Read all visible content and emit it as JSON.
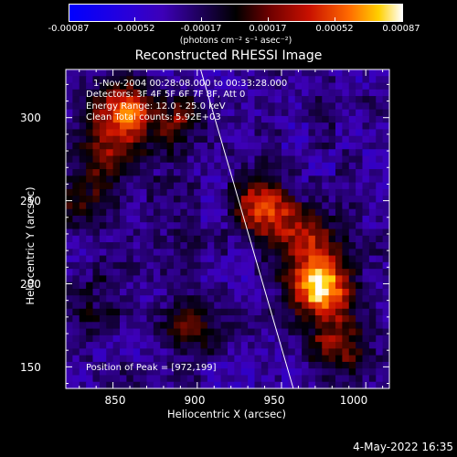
{
  "colorbar": {
    "tick_labels": [
      "-0.00087",
      "-0.00052",
      "-0.00017",
      "0.00017",
      "0.00052",
      "0.00087"
    ],
    "unit_label": "(photons cm⁻² s⁻¹ asec⁻²)",
    "range": [
      -0.00087,
      0.00087
    ],
    "colors": [
      "#0000ff",
      "#3d00b8",
      "#000000",
      "#c81000",
      "#ff6a00",
      "#ffd000",
      "#ffffff"
    ]
  },
  "chart_data": {
    "type": "heatmap",
    "title": "Reconstructed RHESSI Image",
    "xlabel": "Heliocentric X (arcsec)",
    "ylabel": "Heliocentric Y (arcsec)",
    "xlim": [
      822,
      1014
    ],
    "ylim": [
      137,
      329
    ],
    "x_ticks": [
      850,
      900,
      950,
      1000
    ],
    "y_ticks": [
      150,
      200,
      250,
      300
    ],
    "limb_line": [
      [
        902,
        329
      ],
      [
        957,
        137
      ]
    ],
    "sources": [
      {
        "x": 972,
        "y": 199,
        "intensity": 1.0
      },
      {
        "x": 940,
        "y": 245,
        "intensity": 0.75
      },
      {
        "x": 855,
        "y": 305,
        "intensity": 0.7
      },
      {
        "x": 885,
        "y": 296,
        "intensity": 0.45
      },
      {
        "x": 964,
        "y": 228,
        "intensity": 0.5
      },
      {
        "x": 846,
        "y": 281,
        "intensity": 0.45
      },
      {
        "x": 895,
        "y": 172,
        "intensity": 0.4
      },
      {
        "x": 980,
        "y": 172,
        "intensity": 0.4
      },
      {
        "x": 990,
        "y": 150,
        "intensity": 0.25
      },
      {
        "x": 830,
        "y": 252,
        "intensity": 0.3
      },
      {
        "x": 840,
        "y": 190,
        "intensity": 0.2
      }
    ],
    "annotations": [
      "1-Nov-2004 00:28:08.000 to 00:33:28.000",
      "Detectors: 3F 4F 5F 6F 7F 8F, Att 0",
      "Energy Range: 12.0 - 25.0 keV",
      "Clean      Total counts: 5.92E+03"
    ],
    "peak_label": "Position of Peak = [972,199]"
  },
  "footer": {
    "date": "4-May-2022 16:35"
  }
}
